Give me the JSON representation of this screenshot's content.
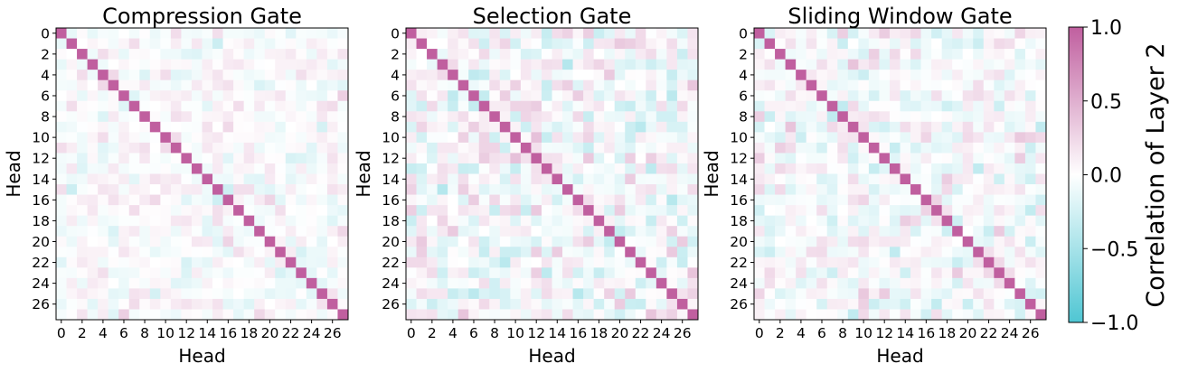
{
  "chart_data": {
    "type": "heatmap",
    "n_heads": 28,
    "value_range": [
      -1.0,
      1.0
    ],
    "colormap": {
      "low": "#4fc6d3",
      "mid": "#ffffff",
      "high": "#c05f9f"
    },
    "colorbar": {
      "label": "Correlation of Layer 2",
      "ticks": [
        "1.0",
        "0.5",
        "0.0",
        "−0.5",
        "−1.0"
      ],
      "tick_values": [
        1.0,
        0.5,
        0.0,
        -0.5,
        -1.0
      ]
    },
    "tick_labels": [
      "0",
      "2",
      "4",
      "6",
      "8",
      "10",
      "12",
      "14",
      "16",
      "18",
      "20",
      "22",
      "24",
      "26"
    ],
    "tick_values": [
      0,
      2,
      4,
      6,
      8,
      10,
      12,
      14,
      16,
      18,
      20,
      22,
      24,
      26
    ],
    "panels": [
      {
        "title": "Compression Gate",
        "xlabel": "Head",
        "ylabel": "Head",
        "seed": 11,
        "spread": 0.2
      },
      {
        "title": "Selection Gate",
        "xlabel": "Head",
        "ylabel": "Head",
        "seed": 29,
        "spread": 0.3
      },
      {
        "title": "Sliding Window Gate",
        "xlabel": "Head",
        "ylabel": "Head",
        "seed": 47,
        "spread": 0.28
      }
    ]
  }
}
